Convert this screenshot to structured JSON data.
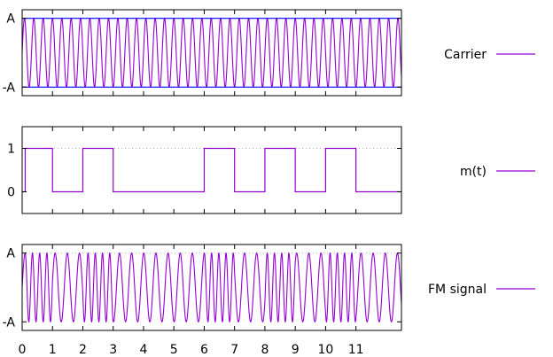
{
  "colors": {
    "signal": "#9400d3",
    "envelope": "#0000ff",
    "frame": "#000000",
    "grid": "#b0b0b0"
  },
  "chart_data": [
    {
      "type": "line",
      "y_tick_labels": [
        "-A",
        "A"
      ],
      "y_ticks": [
        -1,
        1
      ],
      "ylim": [
        -1.25,
        1.25
      ],
      "xlim": [
        0,
        12.5
      ],
      "grid": true,
      "legend": "right",
      "series": [
        {
          "name": "Carrier",
          "kind": "sine",
          "amplitude": 1,
          "cycles_per_unit": 3.25
        },
        {
          "name": "",
          "kind": "hline",
          "values": [
            1,
            -1
          ]
        }
      ]
    },
    {
      "type": "line",
      "y_tick_labels": [
        "0",
        "1"
      ],
      "y_ticks": [
        0,
        1
      ],
      "ylim": [
        -0.5,
        1.5
      ],
      "xlim": [
        0,
        12.5
      ],
      "grid": true,
      "legend": "right",
      "series": [
        {
          "name": "m(t)",
          "kind": "step",
          "x": [
            0,
            0.1,
            0.1,
            1,
            1,
            2,
            2,
            3,
            3,
            6,
            6,
            7,
            7,
            8,
            8,
            9,
            9,
            10,
            10,
            11,
            11,
            12.5
          ],
          "y": [
            0,
            0,
            1,
            1,
            0,
            0,
            1,
            1,
            0,
            0,
            1,
            1,
            0,
            0,
            1,
            1,
            0,
            0,
            1,
            1,
            0,
            0
          ]
        }
      ]
    },
    {
      "type": "line",
      "y_tick_labels": [
        "-A",
        "A"
      ],
      "y_ticks": [
        -1,
        1
      ],
      "ylim": [
        -1.25,
        1.25
      ],
      "xlim": [
        0,
        12.5
      ],
      "grid": true,
      "legend": "right",
      "x_tick_labels": [
        "0",
        "1",
        "2",
        "3",
        "4",
        "5",
        "6",
        "7",
        "8",
        "9",
        "10",
        "11"
      ],
      "series": [
        {
          "name": "FM signal",
          "kind": "fm",
          "amplitude": 1,
          "freq_low": 2.5,
          "freq_high": 4.2
        }
      ]
    }
  ]
}
